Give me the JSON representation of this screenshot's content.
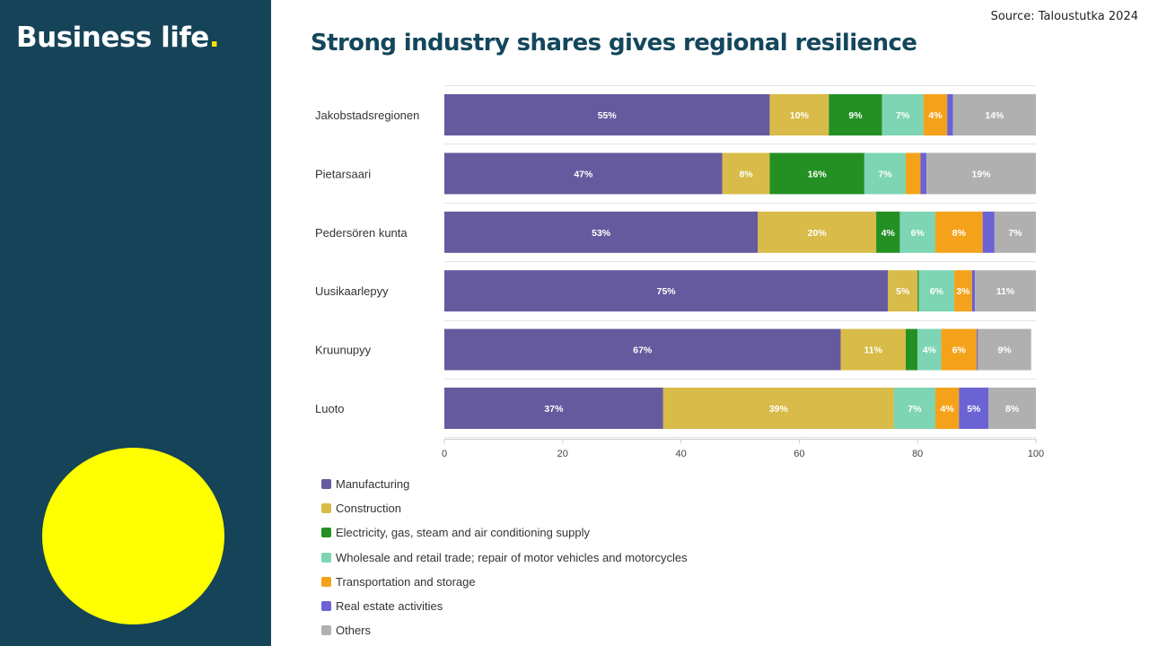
{
  "brand": {
    "text": "Business life",
    "dot": "."
  },
  "source": "Source: Taloustutka 2024",
  "title": "Strong industry shares gives regional resilience",
  "colors": {
    "sidebar": "#154357",
    "accent": "#ffff00"
  },
  "chart_data": {
    "type": "bar",
    "orientation": "horizontal",
    "stacked": true,
    "title": "",
    "xlabel": "",
    "ylabel": "",
    "xlim": [
      0,
      100
    ],
    "xticks": [
      0,
      20,
      40,
      60,
      80,
      100
    ],
    "grid": true,
    "legend_position": "bottom-left",
    "categories": [
      "Jakobstadsregionen",
      "Pietarsaari",
      "Pedersören kunta",
      "Uusikaarlepyy",
      "Kruunupyy",
      "Luoto"
    ],
    "series": [
      {
        "name": "Manufacturing",
        "color": "#665a9e",
        "values": [
          55,
          47,
          53,
          75,
          67,
          37
        ],
        "labels": [
          "55%",
          "47%",
          "53%",
          "75%",
          "67%",
          "37%"
        ]
      },
      {
        "name": "Construction",
        "color": "#d8bb48",
        "values": [
          10,
          8,
          20,
          5,
          11,
          39
        ],
        "labels": [
          "10%",
          "8%",
          "20%",
          "5%",
          "11%",
          "39%"
        ]
      },
      {
        "name": "Electricity, gas, steam and air conditioning supply",
        "color": "#249024",
        "values": [
          9,
          16,
          4,
          0.2,
          2,
          0
        ],
        "labels": [
          "9%",
          "16%",
          "4%",
          "",
          "",
          ""
        ]
      },
      {
        "name": "Wholesale and retail trade; repair of motor vehicles and motorcycles",
        "color": "#7dd5b3",
        "values": [
          7,
          7,
          6,
          6,
          4,
          7
        ],
        "labels": [
          "7%",
          "7%",
          "6%",
          "6%",
          "4%",
          "7%"
        ]
      },
      {
        "name": "Transportation and storage",
        "color": "#f5a21b",
        "values": [
          4,
          2.5,
          8,
          3,
          6,
          4
        ],
        "labels": [
          "4%",
          "",
          "8%",
          "3%",
          "6%",
          "4%"
        ]
      },
      {
        "name": "Real estate activities",
        "color": "#6b62d4",
        "values": [
          1,
          1,
          2,
          0.5,
          0.2,
          5
        ],
        "labels": [
          "",
          "",
          "",
          "",
          "",
          "5%"
        ]
      },
      {
        "name": "Others",
        "color": "#b0b0b0",
        "values": [
          14,
          19,
          7,
          11,
          9,
          8
        ],
        "labels": [
          "14%",
          "19%",
          "7%",
          "11%",
          "9%",
          "8%"
        ]
      }
    ]
  }
}
